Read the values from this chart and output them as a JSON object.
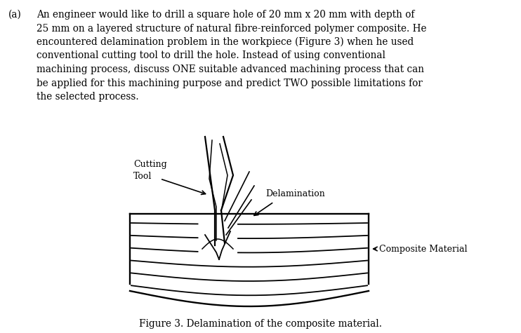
{
  "bg_color": "#ffffff",
  "label_a": "(a)",
  "paragraph": "An engineer would like to drill a square hole of 20 mm x 20 mm with depth of\n25 mm on a layered structure of natural fibre-reinforced polymer composite. He\nencountered delamination problem in the workpiece (Figure 3) when he used\nconventional cutting tool to drill the hole. Instead of using conventional\nmachining process, discuss ONE suitable advanced machining process that can\nbe applied for this machining purpose and predict TWO possible limitations for\nthe selected process.",
  "figure_caption": "Figure 3. Delamination of the composite material.",
  "label_cutting_tool": "Cutting\nTool",
  "label_delamination": "Delamination",
  "label_composite": "Composite Material",
  "text_color": "#000000",
  "line_color": "#000000",
  "font_size_body": 9.8,
  "font_size_label": 9.0,
  "font_size_caption": 9.8
}
